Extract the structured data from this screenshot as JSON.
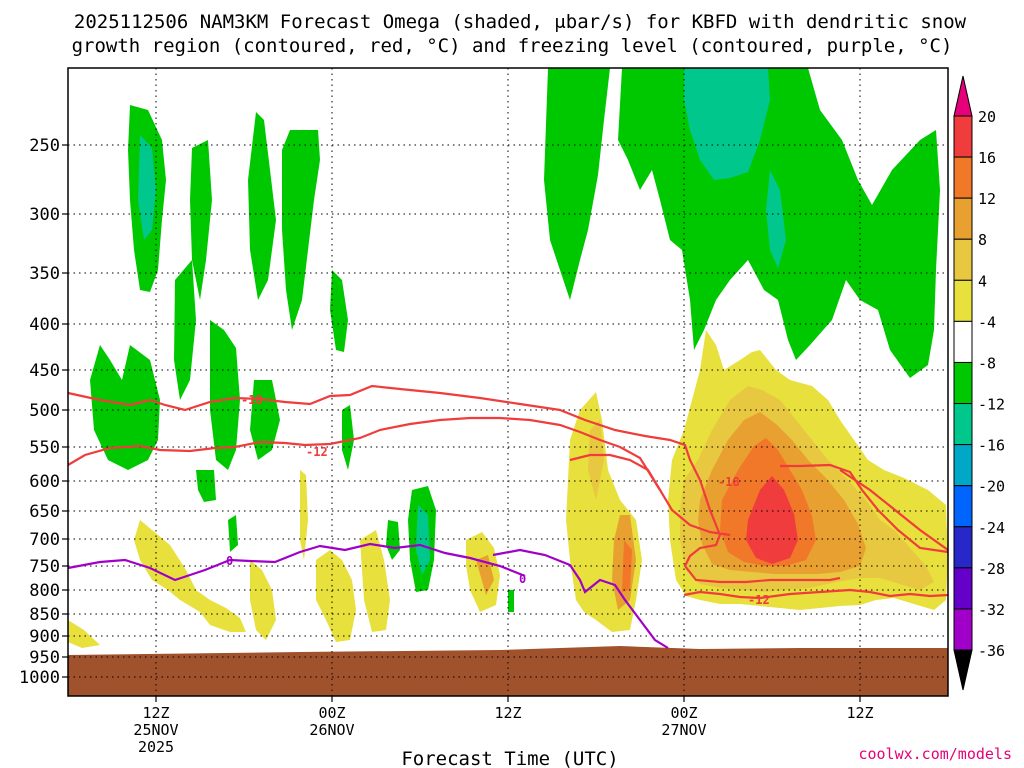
{
  "chart_data": {
    "type": "heatmap",
    "title_line1": "2025112506 NAM3KM Forecast Omega (shaded, μbar/s) for KBFD with dendritic snow",
    "title_line2": "growth region (contoured, red, °C) and freezing level (contoured, purple, °C)",
    "xlabel": "Forecast Time (UTC)",
    "credit": "coolwx.com/models",
    "y_ticks": [
      {
        "label": "250",
        "value": 250
      },
      {
        "label": "300",
        "value": 300
      },
      {
        "label": "350",
        "value": 350
      },
      {
        "label": "400",
        "value": 400
      },
      {
        "label": "450",
        "value": 450
      },
      {
        "label": "500",
        "value": 500
      },
      {
        "label": "550",
        "value": 550
      },
      {
        "label": "600",
        "value": 600
      },
      {
        "label": "650",
        "value": 650
      },
      {
        "label": "700",
        "value": 700
      },
      {
        "label": "750",
        "value": 750
      },
      {
        "label": "800",
        "value": 800
      },
      {
        "label": "850",
        "value": 850
      },
      {
        "label": "900",
        "value": 900
      },
      {
        "label": "950",
        "value": 950
      },
      {
        "label": "1000",
        "value": 1000
      }
    ],
    "x_ticks": [
      {
        "hours": 6,
        "line1": "12Z",
        "line2": "25NOV",
        "line3": "2025"
      },
      {
        "hours": 18,
        "line1": "00Z",
        "line2": "26NOV",
        "line3": ""
      },
      {
        "hours": 30,
        "line1": "12Z",
        "line2": "",
        "line3": ""
      },
      {
        "hours": 42,
        "line1": "00Z",
        "line2": "27NOV",
        "line3": ""
      },
      {
        "hours": 54,
        "line1": "12Z",
        "line2": "",
        "line3": ""
      }
    ],
    "x_range_hours": [
      0,
      60
    ],
    "y_range_mb": [
      210,
      1040
    ],
    "colorbar": {
      "labels": [
        "20",
        "16",
        "12",
        "8",
        "4",
        "-4",
        "-8",
        "-12",
        "-16",
        "-20",
        "-24",
        "-28",
        "-32",
        "-36"
      ],
      "colors": [
        "#e6007a",
        "#f03c3c",
        "#f07828",
        "#e8a030",
        "#e8c840",
        "#e8e03c",
        "#ffffff",
        "#00c800",
        "#00c88c",
        "#00a8c8",
        "#0064ff",
        "#2828c8",
        "#6400c8",
        "#a000c8",
        "#a0a0a0",
        "#000000"
      ]
    },
    "contour_labels": {
      "dgz_upper": "-18",
      "dgz_lower": "-12",
      "dgz_east_upper": "-18",
      "dgz_east_lower": "-12",
      "freezing_a": "0",
      "freezing_b": "0"
    }
  }
}
